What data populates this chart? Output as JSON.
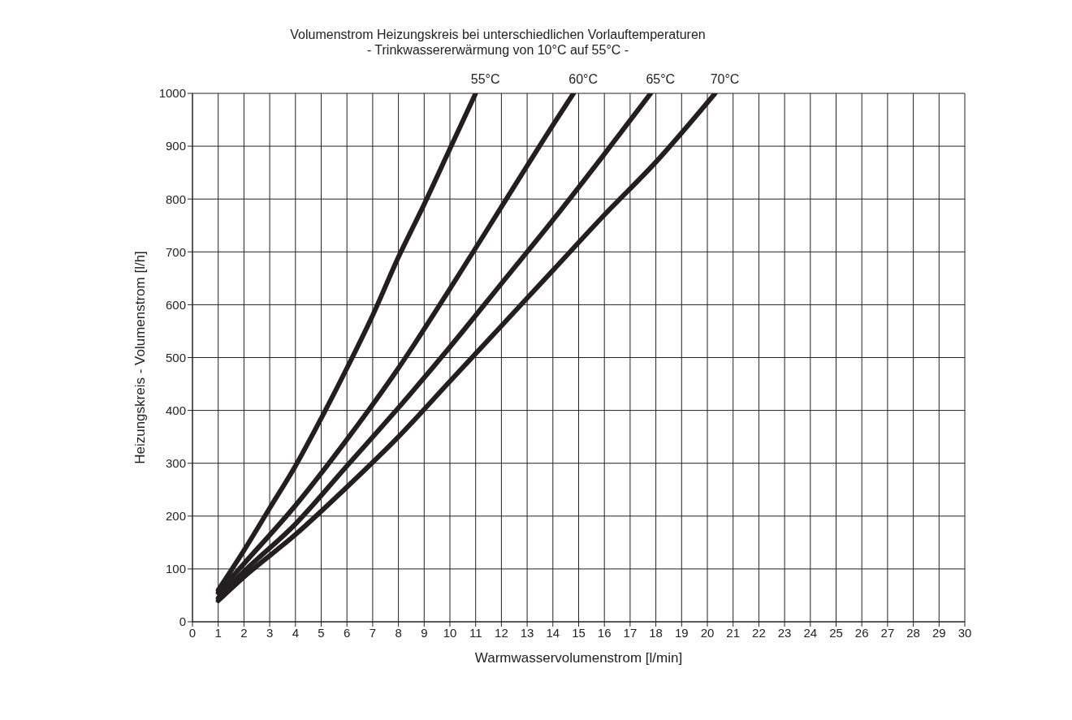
{
  "chart_data": {
    "type": "line",
    "title": "Volumenstrom Heizungskreis bei unterschiedlichen Vorlauftemperaturen",
    "subtitle": "- Trinkwassererwärmung von 10°C auf 55°C -",
    "xlabel": "Warmwasservolumenstrom [l/min]",
    "ylabel": "Heizungskreis - Volumenstrom [l/h]",
    "xlim": [
      0,
      30
    ],
    "xticks": [
      0,
      1,
      2,
      3,
      4,
      5,
      6,
      7,
      8,
      9,
      10,
      11,
      12,
      13,
      14,
      15,
      16,
      17,
      18,
      19,
      20,
      21,
      22,
      23,
      24,
      25,
      26,
      27,
      28,
      29,
      30
    ],
    "ylim": [
      0,
      1000
    ],
    "yticks": [
      0,
      100,
      200,
      300,
      400,
      500,
      600,
      700,
      800,
      900,
      1000
    ],
    "grid": true,
    "marker": "none",
    "line_style": "solid",
    "series": [
      {
        "name": "55°C",
        "color": "#231f20",
        "x": [
          1,
          2,
          3,
          4,
          5,
          6,
          7,
          8,
          9,
          10,
          11
        ],
        "values": [
          60,
          135,
          215,
          295,
          385,
          480,
          580,
          690,
          790,
          895,
          1000
        ]
      },
      {
        "name": "60°C",
        "color": "#231f20",
        "x": [
          1,
          2,
          4,
          6,
          8,
          10,
          12,
          14,
          14.8
        ],
        "values": [
          55,
          110,
          220,
          345,
          480,
          630,
          785,
          940,
          1000
        ]
      },
      {
        "name": "65°C",
        "color": "#231f20",
        "x": [
          1,
          2,
          4,
          6,
          8,
          10,
          12,
          14,
          16,
          17.8
        ],
        "values": [
          45,
          95,
          185,
          295,
          405,
          520,
          640,
          760,
          885,
          1000
        ]
      },
      {
        "name": "70°C",
        "color": "#231f20",
        "x": [
          1,
          2,
          4,
          6,
          8,
          10,
          12,
          14,
          16,
          18,
          20.3
        ],
        "values": [
          40,
          85,
          165,
          255,
          350,
          455,
          560,
          665,
          770,
          870,
          1000
        ]
      }
    ]
  }
}
